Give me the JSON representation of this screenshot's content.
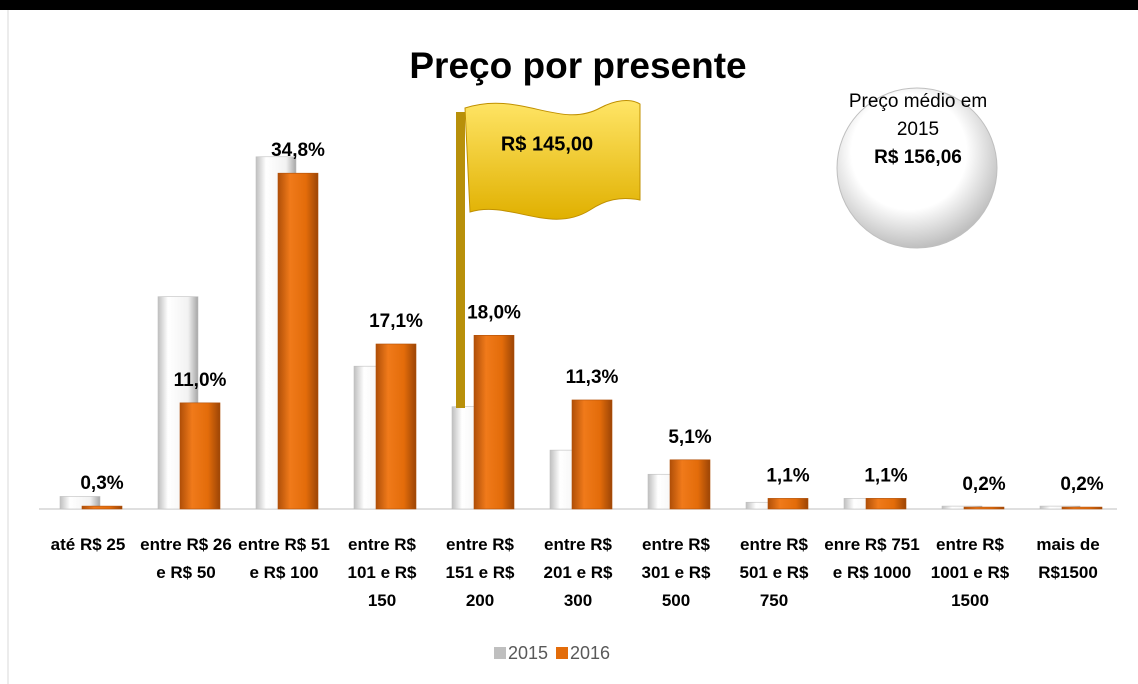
{
  "chart_data": {
    "type": "bar",
    "title": "Preço por presente",
    "categories": [
      "até R$ 25",
      "entre R$ 26 e R$ 50",
      "entre R$ 51 e R$ 100",
      "entre R$ 101 e R$ 150",
      "entre R$ 151 e R$ 200",
      "entre R$ 201 e R$ 300",
      "entre R$ 301 e R$ 500",
      "entre R$ 501 e R$ 750",
      "enre R$ 751 e R$ 1000",
      "entre R$ 1001 e R$ 1500",
      "mais de R$1500"
    ],
    "series": [
      {
        "name": "2015",
        "color": "#d9d9d9",
        "values": [
          1.3,
          22.0,
          36.5,
          14.8,
          10.6,
          6.1,
          3.6,
          0.7,
          1.1,
          0.3,
          0.3
        ]
      },
      {
        "name": "2016",
        "color": "#e36c0a",
        "values": [
          0.3,
          11.0,
          34.8,
          17.1,
          18.0,
          11.3,
          5.1,
          1.1,
          1.1,
          0.2,
          0.2
        ],
        "value_labels": [
          "0,3%",
          "11,0%",
          "34,8%",
          "17,1%",
          "18,0%",
          "11,3%",
          "5,1%",
          "1,1%",
          "1,1%",
          "0,2%",
          "0,2%"
        ]
      }
    ],
    "ylim": [
      0,
      40
    ],
    "flag_label": "R$ 145,00",
    "bubble_text": "Preço médio em 2015",
    "bubble_value": "R$ 156,06"
  }
}
